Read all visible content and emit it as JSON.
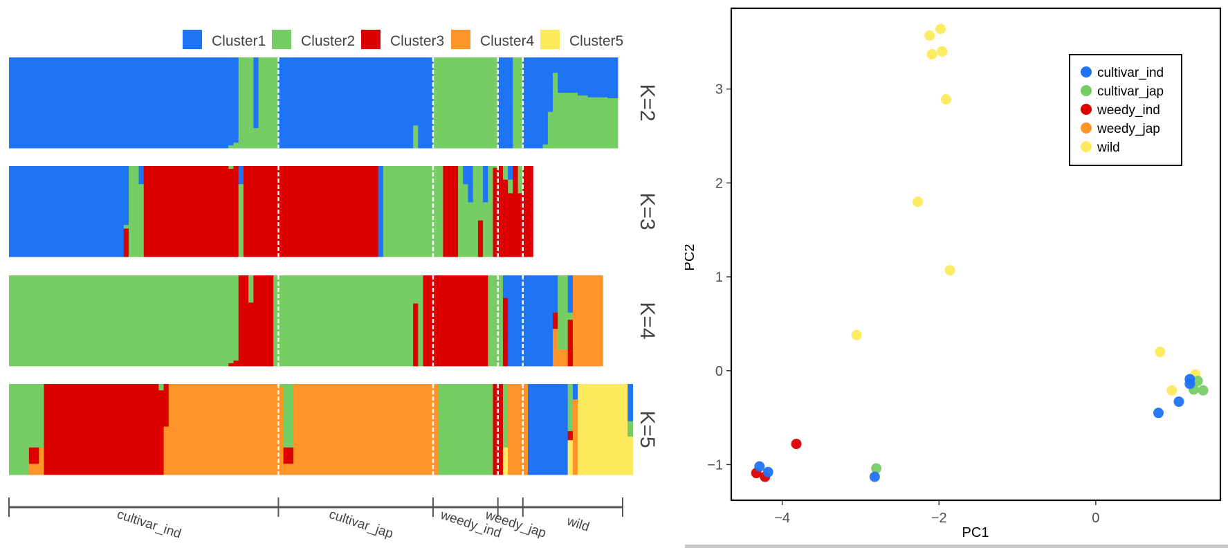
{
  "chart_data": [
    {
      "type": "bar",
      "subtype": "stacked-admixture",
      "title": "",
      "legend": {
        "placement": "top-right",
        "entries": [
          {
            "name": "Cluster1",
            "color": "#1f73f5"
          },
          {
            "name": "Cluster2",
            "color": "#76cd63"
          },
          {
            "name": "Cluster3",
            "color": "#dc0000"
          },
          {
            "name": "Cluster4",
            "color": "#ff9428"
          },
          {
            "name": "Cluster5",
            "color": "#fdea5c"
          }
        ]
      },
      "groups": [
        {
          "name": "cultivar_ind",
          "n": 54
        },
        {
          "name": "cultivar_jap",
          "n": 31
        },
        {
          "name": "weedy_ind",
          "n": 13
        },
        {
          "name": "weedy_jap",
          "n": 5
        },
        {
          "name": "wild",
          "n": 20
        }
      ],
      "panels": [
        {
          "label": "K=2",
          "runs": [
            {
              "count": 44,
              "q": [
                1.0,
                0.0
              ]
            },
            {
              "count": 1,
              "q": [
                0.97,
                0.03
              ]
            },
            {
              "count": 1,
              "q": [
                0.94,
                0.06
              ]
            },
            {
              "count": 3,
              "q": [
                0.0,
                1.0
              ]
            },
            {
              "count": 1,
              "q": [
                0.78,
                0.22
              ]
            },
            {
              "count": 1,
              "q": [
                0.0,
                1.0
              ]
            },
            {
              "count": 1,
              "q": [
                0.0,
                1.0
              ]
            },
            {
              "count": 2,
              "q": [
                0.0,
                1.0
              ]
            },
            {
              "count": 27,
              "q": [
                1.0,
                0.0
              ]
            },
            {
              "count": 1,
              "q": [
                0.75,
                0.25
              ]
            },
            {
              "count": 3,
              "q": [
                1.0,
                0.0
              ]
            },
            {
              "count": 13,
              "q": [
                0.0,
                1.0
              ]
            },
            {
              "count": 3,
              "q": [
                1.0,
                0.0
              ]
            },
            {
              "count": 2,
              "q": [
                0.0,
                1.0
              ]
            },
            {
              "count": 4,
              "q": [
                1.0,
                0.0
              ]
            },
            {
              "count": 1,
              "q": [
                0.96,
                0.04
              ]
            },
            {
              "count": 1,
              "q": [
                0.6,
                0.4
              ]
            },
            {
              "count": 1,
              "q": [
                0.17,
                0.83
              ]
            },
            {
              "count": 2,
              "q": [
                0.39,
                0.61
              ]
            },
            {
              "count": 2,
              "q": [
                0.39,
                0.61
              ]
            },
            {
              "count": 2,
              "q": [
                0.42,
                0.58
              ]
            },
            {
              "count": 2,
              "q": [
                0.44,
                0.56
              ]
            },
            {
              "count": 2,
              "q": [
                0.44,
                0.56
              ]
            },
            {
              "count": 2,
              "q": [
                0.45,
                0.55
              ]
            }
          ]
        },
        {
          "label": "K=3",
          "runs": [
            {
              "count": 23,
              "q": [
                1.0,
                0.0,
                0.0
              ]
            },
            {
              "count": 1,
              "q": [
                0.65,
                0.04,
                0.31
              ]
            },
            {
              "count": 2,
              "q": [
                0.0,
                1.0,
                0.0
              ]
            },
            {
              "count": 1,
              "q": [
                0.2,
                0.8,
                0.0
              ]
            },
            {
              "count": 17,
              "q": [
                0.0,
                0.0,
                1.0
              ]
            },
            {
              "count": 1,
              "q": [
                0.0,
                0.03,
                0.97
              ]
            },
            {
              "count": 1,
              "q": [
                0.0,
                0.0,
                1.0
              ]
            },
            {
              "count": 1,
              "q": [
                0.2,
                0.8,
                0.0
              ]
            },
            {
              "count": 27,
              "q": [
                0.0,
                0.0,
                1.0
              ]
            },
            {
              "count": 1,
              "q": [
                1.0,
                0.0,
                0.0
              ]
            },
            {
              "count": 11,
              "q": [
                0.0,
                1.0,
                0.0
              ]
            },
            {
              "count": 1,
              "q": [
                0.0,
                1.0,
                0.0
              ]
            },
            {
              "count": 3,
              "q": [
                0.0,
                0.0,
                1.0
              ]
            },
            {
              "count": 1,
              "q": [
                0.0,
                1.0,
                0.0
              ]
            },
            {
              "count": 1,
              "q": [
                0.2,
                0.8,
                0.0
              ]
            },
            {
              "count": 1,
              "q": [
                0.4,
                0.6,
                0.0
              ]
            },
            {
              "count": 1,
              "q": [
                0.0,
                1.0,
                0.0
              ]
            },
            {
              "count": 1,
              "q": [
                0.0,
                0.6,
                0.4
              ]
            },
            {
              "count": 1,
              "q": [
                0.4,
                0.6,
                0.0
              ]
            },
            {
              "count": 1,
              "q": [
                0.0,
                1.0,
                0.0
              ]
            },
            {
              "count": 1,
              "q": [
                0.0,
                0.02,
                0.98
              ]
            },
            {
              "count": 1,
              "q": [
                0.0,
                0.0,
                1.0
              ]
            },
            {
              "count": 1,
              "q": [
                0.0,
                0.15,
                0.85
              ]
            },
            {
              "count": 1,
              "q": [
                0.15,
                0.15,
                0.7
              ]
            },
            {
              "count": 1,
              "q": [
                0.0,
                0.0,
                1.0
              ]
            },
            {
              "count": 1,
              "q": [
                0.0,
                0.3,
                0.7
              ]
            },
            {
              "count": 2,
              "q": [
                0.0,
                0.0,
                1.0
              ]
            }
          ]
        },
        {
          "label": "K=4",
          "runs": [
            {
              "count": 44,
              "q": [
                0.0,
                1.0,
                0.0,
                0.0
              ]
            },
            {
              "count": 1,
              "q": [
                0.0,
                0.97,
                0.03,
                0.0
              ]
            },
            {
              "count": 1,
              "q": [
                0.0,
                0.94,
                0.06,
                0.0
              ]
            },
            {
              "count": 2,
              "q": [
                0.0,
                0.0,
                1.0,
                0.0
              ]
            },
            {
              "count": 1,
              "q": [
                0.0,
                0.3,
                0.7,
                0.0
              ]
            },
            {
              "count": 1,
              "q": [
                0.0,
                0.0,
                1.0,
                0.0
              ]
            },
            {
              "count": 3,
              "q": [
                0.0,
                0.0,
                1.0,
                0.0
              ]
            },
            {
              "count": 1,
              "q": [
                0.0,
                1.0,
                0.0,
                0.0
              ]
            },
            {
              "count": 27,
              "q": [
                0.0,
                1.0,
                0.0,
                0.0
              ]
            },
            {
              "count": 1,
              "q": [
                0.0,
                0.31,
                0.69,
                0.0
              ]
            },
            {
              "count": 1,
              "q": [
                0.0,
                1.0,
                0.0,
                0.0
              ]
            },
            {
              "count": 13,
              "q": [
                0.0,
                0.0,
                1.0,
                0.0
              ]
            },
            {
              "count": 3,
              "q": [
                0.0,
                1.0,
                0.0,
                0.0
              ]
            },
            {
              "count": 1,
              "q": [
                0.25,
                0.0,
                0.75,
                0.0
              ]
            },
            {
              "count": 1,
              "q": [
                1.0,
                0.0,
                0.0,
                0.0
              ]
            },
            {
              "count": 8,
              "q": [
                1.0,
                0.0,
                0.0,
                0.0
              ]
            },
            {
              "count": 1,
              "q": [
                0.41,
                0.0,
                0.18,
                0.41
              ]
            },
            {
              "count": 2,
              "q": [
                0.0,
                0.82,
                0.0,
                0.18
              ]
            },
            {
              "count": 1,
              "q": [
                0.41,
                0.08,
                0.51,
                0.0
              ]
            },
            {
              "count": 6,
              "q": [
                0.0,
                0.0,
                0.0,
                1.0
              ]
            }
          ]
        },
        {
          "label": "K=5",
          "runs": [
            {
              "count": 4,
              "q": [
                0.0,
                1.0,
                0.0,
                0.0,
                0.0
              ]
            },
            {
              "count": 2,
              "q": [
                0.0,
                0.7,
                0.18,
                0.12,
                0.0
              ]
            },
            {
              "count": 1,
              "q": [
                0.0,
                0.7,
                0.0,
                0.3,
                0.0
              ]
            },
            {
              "count": 23,
              "q": [
                0.0,
                0.0,
                1.0,
                0.0,
                0.0
              ]
            },
            {
              "count": 1,
              "q": [
                0.0,
                0.07,
                0.93,
                0.0,
                0.0
              ]
            },
            {
              "count": 1,
              "q": [
                0.0,
                0.0,
                0.47,
                0.53,
                0.0
              ]
            },
            {
              "count": 22,
              "q": [
                0.0,
                0.0,
                0.0,
                1.0,
                0.0
              ]
            },
            {
              "count": 1,
              "q": [
                0.0,
                0.03,
                0.0,
                0.97,
                0.0
              ]
            },
            {
              "count": 1,
              "q": [
                0.0,
                0.7,
                0.18,
                0.12,
                0.0
              ]
            },
            {
              "count": 1,
              "q": [
                0.0,
                0.7,
                0.18,
                0.12,
                0.0
              ]
            },
            {
              "count": 29,
              "q": [
                0.0,
                0.0,
                0.0,
                1.0,
                0.0
              ]
            },
            {
              "count": 11,
              "q": [
                0.0,
                1.0,
                0.0,
                0.0,
                0.0
              ]
            },
            {
              "count": 2,
              "q": [
                0.0,
                0.0,
                1.0,
                0.0,
                0.0
              ]
            },
            {
              "count": 1,
              "q": [
                0.0,
                0.7,
                0.0,
                0.0,
                0.3
              ]
            },
            {
              "count": 4,
              "q": [
                0.0,
                0.0,
                0.0,
                1.0,
                0.0
              ]
            },
            {
              "count": 1,
              "q": [
                1.0,
                0.0,
                0.0,
                0.0,
                0.0
              ]
            },
            {
              "count": 7,
              "q": [
                1.0,
                0.0,
                0.0,
                0.0,
                0.0
              ]
            },
            {
              "count": 1,
              "q": [
                0.0,
                0.52,
                0.1,
                0.0,
                0.38
              ]
            },
            {
              "count": 1,
              "q": [
                0.17,
                0.0,
                0.0,
                0.83,
                0.0
              ]
            },
            {
              "count": 10,
              "q": [
                0.0,
                0.0,
                0.0,
                0.0,
                1.0
              ]
            },
            {
              "count": 1,
              "q": [
                0.41,
                0.17,
                0.0,
                0.0,
                0.42
              ]
            }
          ]
        }
      ],
      "xlabel": "",
      "ylabel": ""
    },
    {
      "type": "scatter",
      "title": "",
      "xlabel": "PC1",
      "ylabel": "PC2",
      "xlim": [
        -4.65,
        1.59
      ],
      "ylim": [
        -1.38,
        3.86
      ],
      "xticks": [
        -4,
        -2,
        0
      ],
      "yticks": [
        -1,
        0,
        1,
        2,
        3
      ],
      "grid": false,
      "legend": {
        "placement": "top-right",
        "entries": [
          {
            "name": "cultivar_ind",
            "color": "#1f73f5"
          },
          {
            "name": "cultivar_jap",
            "color": "#76cd63"
          },
          {
            "name": "weedy_ind",
            "color": "#dc0000"
          },
          {
            "name": "weedy_jap",
            "color": "#ff9428"
          },
          {
            "name": "wild",
            "color": "#fdea5c"
          }
        ]
      },
      "series": [
        {
          "name": "wild",
          "points": [
            [
              -2.12,
              3.57
            ],
            [
              -1.98,
              3.64
            ],
            [
              -2.09,
              3.37
            ],
            [
              -1.96,
              3.4
            ],
            [
              -1.91,
              2.89
            ],
            [
              -2.27,
              1.8
            ],
            [
              -1.86,
              1.07
            ],
            [
              -3.05,
              0.38
            ],
            [
              0.82,
              0.2
            ],
            [
              1.27,
              -0.04
            ],
            [
              0.97,
              -0.21
            ]
          ]
        },
        {
          "name": "cultivar_jap",
          "points": [
            [
              -2.8,
              -1.04
            ],
            [
              1.3,
              -0.11
            ],
            [
              1.25,
              -0.2
            ],
            [
              1.37,
              -0.21
            ]
          ]
        },
        {
          "name": "weedy_ind",
          "points": [
            [
              -3.82,
              -0.78
            ],
            [
              -4.33,
              -1.09
            ],
            [
              -4.22,
              -1.13
            ]
          ]
        },
        {
          "name": "cultivar_ind",
          "points": [
            [
              -4.29,
              -1.02
            ],
            [
              -4.18,
              -1.08
            ],
            [
              -2.82,
              -1.13
            ],
            [
              0.8,
              -0.45
            ],
            [
              1.06,
              -0.33
            ],
            [
              1.2,
              -0.09
            ],
            [
              1.2,
              -0.14
            ]
          ]
        },
        {
          "name": "weedy_jap",
          "points": []
        }
      ]
    }
  ]
}
